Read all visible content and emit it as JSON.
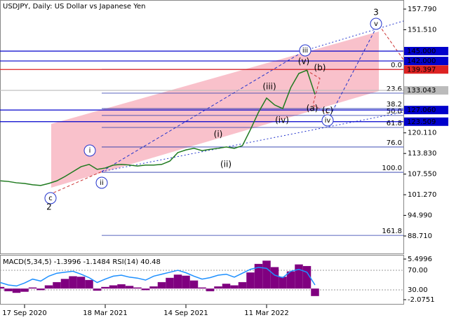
{
  "chart_data": [
    {
      "type": "line",
      "title": "USDJPY, Daily:  US Dollar vs Japanese Yen",
      "categories": [
        null,
        null,
        null,
        "17 Sep 2020",
        null,
        null,
        null,
        null,
        null,
        null,
        null,
        null,
        null,
        "18 Mar 2021",
        null,
        null,
        null,
        null,
        null,
        null,
        null,
        null,
        null,
        "14 Sep 2021",
        null,
        null,
        null,
        null,
        null,
        null,
        null,
        null,
        null,
        "11 Mar 2022",
        null,
        null,
        null,
        null,
        null,
        null
      ],
      "series": [
        {
          "color": "#1f7a1f",
          "values": [
            105.5,
            105.3,
            104.9,
            104.7,
            104.3,
            104.1,
            104.7,
            105.5,
            106.8,
            108.3,
            109.8,
            110.5,
            109.0,
            109.4,
            110.3,
            110.5,
            110.3,
            110.0,
            110.3,
            110.3,
            110.5,
            111.5,
            114.1,
            114.9,
            115.4,
            114.7,
            115.1,
            115.4,
            115.8,
            115.4,
            116.2,
            121.1,
            126.4,
            130.7,
            128.6,
            127.5,
            133.9,
            138.2,
            139.2,
            131.8
          ]
        }
      ],
      "ylim": [
        83.38,
        160.56
      ],
      "yticks": [
        {
          "value": 157.79,
          "label": "157.790"
        },
        {
          "value": 151.51,
          "label": "151.510"
        },
        {
          "value": 120.11,
          "label": "120.110"
        },
        {
          "value": 113.83,
          "label": "113.830"
        },
        {
          "value": 107.55,
          "label": "107.550"
        },
        {
          "value": 101.27,
          "label": "101.270"
        },
        {
          "value": 94.99,
          "label": "94.990"
        },
        {
          "value": 88.71,
          "label": "88.710"
        }
      ],
      "levels": [
        {
          "value": 145,
          "label": "145.000",
          "color": "#0000cc"
        },
        {
          "value": 142,
          "label": "142.000",
          "color": "#0000cc"
        },
        {
          "value": 139.397,
          "label": "139.397",
          "color": "#dd2222"
        },
        {
          "value": 133.043,
          "label": "133.043",
          "color": "#bbbbbb"
        },
        {
          "value": 127.06,
          "label": "127.060",
          "color": "#0000cc"
        },
        {
          "value": 123.509,
          "label": "123.509",
          "color": "#0000cc"
        }
      ],
      "fib_levels": [
        {
          "value": 139.45,
          "label": "0.0"
        },
        {
          "value": 132.2,
          "label": "23.6"
        },
        {
          "value": 127.5,
          "label": "38.2"
        },
        {
          "value": 125.4,
          "label": "50.0"
        },
        {
          "value": 121.75,
          "label": "61.8"
        },
        {
          "value": 115.8,
          "label": "76.0"
        },
        {
          "value": 108.1,
          "label": "100.0"
        },
        {
          "value": 88.9,
          "label": "161.8"
        }
      ],
      "annotations": [
        {
          "text": "3",
          "color": "#cc3333",
          "circled": false
        },
        {
          "text": "v",
          "color": "#2233cc",
          "circled": true
        },
        {
          "text": "iii",
          "color": "#2233cc",
          "circled": true
        },
        {
          "text": "(v)",
          "color": "#cc3333",
          "circled": false
        },
        {
          "text": "(b)",
          "color": "#cc3333",
          "circled": false
        },
        {
          "text": "(iii)",
          "color": "#cc3333",
          "circled": false
        },
        {
          "text": "(a)",
          "color": "#cc3333",
          "circled": false
        },
        {
          "text": "(c)",
          "color": "#cc3333",
          "circled": false
        },
        {
          "text": "(iv)",
          "color": "#cc3333",
          "circled": false
        },
        {
          "text": "iv",
          "color": "#2233cc",
          "circled": true
        },
        {
          "text": "(i)",
          "color": "#cc3333",
          "circled": false
        },
        {
          "text": "i",
          "color": "#2233cc",
          "circled": true
        },
        {
          "text": "(ii)",
          "color": "#cc3333",
          "circled": false
        },
        {
          "text": "ii",
          "color": "#2233cc",
          "circled": true
        },
        {
          "text": "c",
          "color": "#2233cc",
          "circled": true
        },
        {
          "text": "2",
          "color": "#cc3333",
          "circled": false
        }
      ]
    },
    {
      "type": "bar",
      "title": "MACD(5,34,5) -1.3996 -1.1484 RSI(14) 40.48",
      "series": [
        {
          "color": "#800080",
          "values": [
            0.3,
            -0.5,
            -0.8,
            -0.6,
            0.2,
            -0.3,
            0.6,
            1.2,
            1.8,
            2.3,
            2.2,
            1.6,
            -0.4,
            0.3,
            0.6,
            0.8,
            0.5,
            0.2,
            -0.3,
            0.4,
            1.2,
            2.0,
            2.6,
            2.4,
            1.5,
            0.2,
            -0.5,
            0.4,
            0.9,
            0.6,
            1.2,
            3.0,
            4.6,
            5.2,
            4.0,
            2.2,
            3.2,
            4.5,
            4.2,
            -1.4
          ]
        },
        {
          "color": "#1e90ff",
          "axis": "y2",
          "values": [
            45,
            40,
            38,
            44,
            52,
            48,
            58,
            64,
            66,
            68,
            62,
            55,
            45,
            52,
            58,
            60,
            56,
            54,
            50,
            58,
            62,
            66,
            70,
            65,
            58,
            52,
            55,
            60,
            62,
            56,
            64,
            72,
            76,
            74,
            60,
            55,
            68,
            72,
            66,
            40
          ]
        }
      ],
      "ylim": [
        -2.73,
        6.15
      ],
      "yticks": [
        5.4996,
        -2.0751
      ],
      "y2lim": [
        2.86,
        100
      ],
      "y2ticks": [
        {
          "value": 70,
          "label": "70.00"
        },
        {
          "value": 30,
          "label": "30.00"
        }
      ]
    }
  ]
}
